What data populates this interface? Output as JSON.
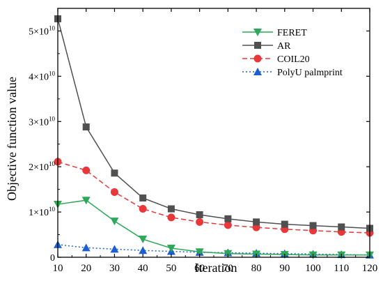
{
  "chart_data": {
    "type": "line",
    "title": "",
    "xlabel": "Iteration",
    "ylabel": "Objective function value",
    "xlim": [
      10,
      120
    ],
    "ylim": [
      0,
      55000000000.0
    ],
    "x": [
      10,
      20,
      30,
      40,
      50,
      60,
      70,
      80,
      90,
      100,
      110,
      120
    ],
    "x_ticks": [
      "10",
      "20",
      "30",
      "40",
      "50",
      "60",
      "70",
      "80",
      "90",
      "100",
      "110",
      "120"
    ],
    "y_ticks": [
      {
        "value": 0,
        "base": "0",
        "exp": ""
      },
      {
        "value": 10000000000.0,
        "base": "1×10",
        "exp": "10"
      },
      {
        "value": 20000000000.0,
        "base": "2×10",
        "exp": "10"
      },
      {
        "value": 30000000000.0,
        "base": "3×10",
        "exp": "10"
      },
      {
        "value": 40000000000.0,
        "base": "4×10",
        "exp": "10"
      },
      {
        "value": 50000000000.0,
        "base": "5×10",
        "exp": "10"
      }
    ],
    "grid": false,
    "legend_position": "top-right",
    "series": [
      {
        "name": "FERET",
        "color": "#2ca858",
        "marker": "triangle-down",
        "dash": "solid",
        "values": [
          11700000000.0,
          12600000000.0,
          8000000000.0,
          4000000000.0,
          2000000000.0,
          1200000000.0,
          800000000.0,
          700000000.0,
          600000000.0,
          500000000.0,
          500000000.0,
          500000000.0
        ]
      },
      {
        "name": "AR",
        "color": "#505050",
        "marker": "square",
        "dash": "solid",
        "values": [
          52700000000.0,
          28800000000.0,
          18600000000.0,
          13100000000.0,
          10700000000.0,
          9400000000.0,
          8500000000.0,
          7800000000.0,
          7300000000.0,
          7000000000.0,
          6700000000.0,
          6400000000.0
        ]
      },
      {
        "name": "COIL20",
        "color": "#e8383a",
        "marker": "circle",
        "dash": "dashed",
        "values": [
          21100000000.0,
          19200000000.0,
          14400000000.0,
          10700000000.0,
          8800000000.0,
          7800000000.0,
          7100000000.0,
          6600000000.0,
          6200000000.0,
          5900000000.0,
          5600000000.0,
          5400000000.0
        ]
      },
      {
        "name": "PolyU palmprint",
        "color": "#1e5fcf",
        "marker": "triangle-up",
        "dash": "dotted",
        "values": [
          2800000000.0,
          2100000000.0,
          1800000000.0,
          1500000000.0,
          1300000000.0,
          1100000000.0,
          1000000000.0,
          900000000.0,
          800000000.0,
          700000000.0,
          600000000.0,
          500000000.0
        ]
      }
    ]
  }
}
